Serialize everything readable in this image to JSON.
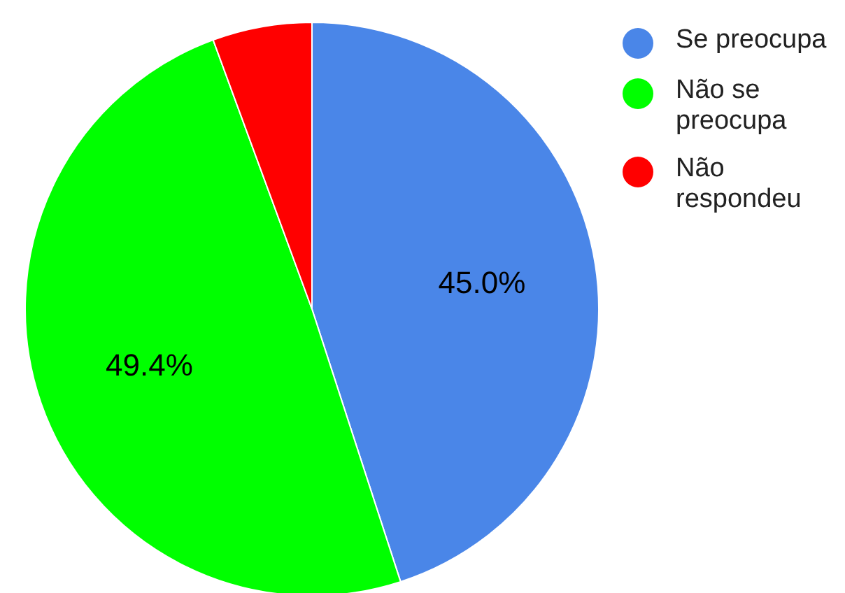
{
  "chart_data": {
    "type": "pie",
    "categories": [
      "Se preocupa",
      "Não se preocupa",
      "Não respondeu"
    ],
    "values": [
      45.0,
      49.4,
      5.6
    ],
    "value_labels": [
      "45.0%",
      "49.4%",
      null
    ],
    "colors": [
      "#4a86e8",
      "#00ff00",
      "#ff0000"
    ],
    "legend": "top right"
  }
}
